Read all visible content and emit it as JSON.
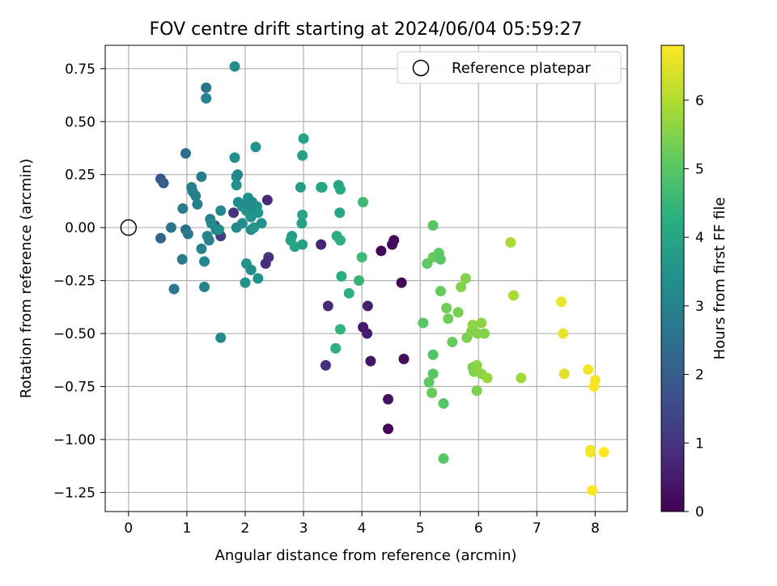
{
  "chart_data": {
    "type": "scatter",
    "title": "FOV centre drift starting at 2024/06/04 05:59:27",
    "xlabel": "Angular distance from reference (arcmin)",
    "ylabel": "Rotation from reference (arcmin)",
    "xlim": [
      -0.4,
      8.55
    ],
    "ylim": [
      -1.34,
      0.86
    ],
    "xticks": [
      0,
      1,
      2,
      3,
      4,
      5,
      6,
      7,
      8
    ],
    "xtick_labels": [
      "0",
      "1",
      "2",
      "3",
      "4",
      "5",
      "6",
      "7",
      "8"
    ],
    "yticks": [
      0.75,
      0.5,
      0.25,
      0.0,
      -0.25,
      -0.5,
      -0.75,
      -1.0,
      -1.25
    ],
    "ytick_labels": [
      "0.75",
      "0.50",
      "0.25",
      "0.00",
      "−0.25",
      "−0.50",
      "−0.75",
      "−1.00",
      "−1.25"
    ],
    "grid": true,
    "legend": {
      "placement": "top-right",
      "entries": [
        "Reference platepar"
      ]
    },
    "colorbar": {
      "label": "Hours from first FF file",
      "range": [
        0,
        6.8
      ],
      "ticks": [
        0,
        1,
        2,
        3,
        4,
        5,
        6
      ],
      "tick_labels": [
        "0",
        "1",
        "2",
        "3",
        "4",
        "5",
        "6"
      ],
      "colormap": "viridis"
    },
    "reference": {
      "x": 0,
      "y": 0,
      "name": "Reference platepar"
    },
    "points": [
      {
        "x": 4.33,
        "y": -0.11,
        "c": 0.1
      },
      {
        "x": 4.55,
        "y": -0.06,
        "c": 0.15
      },
      {
        "x": 4.52,
        "y": -0.08,
        "c": 0.2
      },
      {
        "x": 4.68,
        "y": -0.26,
        "c": 0.1
      },
      {
        "x": 4.72,
        "y": -0.62,
        "c": 0.2
      },
      {
        "x": 4.45,
        "y": -0.81,
        "c": 0.3
      },
      {
        "x": 4.45,
        "y": -0.95,
        "c": 0.1
      },
      {
        "x": 4.15,
        "y": -0.63,
        "c": 0.4
      },
      {
        "x": 4.09,
        "y": -0.5,
        "c": 0.5
      },
      {
        "x": 4.02,
        "y": -0.47,
        "c": 0.45
      },
      {
        "x": 4.1,
        "y": -0.37,
        "c": 0.6
      },
      {
        "x": 3.38,
        "y": -0.65,
        "c": 0.9
      },
      {
        "x": 3.42,
        "y": -0.37,
        "c": 0.8
      },
      {
        "x": 3.3,
        "y": -0.08,
        "c": 0.7
      },
      {
        "x": 2.4,
        "y": -0.14,
        "c": 1.0
      },
      {
        "x": 2.35,
        "y": -0.17,
        "c": 0.9
      },
      {
        "x": 2.38,
        "y": 0.13,
        "c": 0.8
      },
      {
        "x": 1.8,
        "y": 0.07,
        "c": 1.0
      },
      {
        "x": 1.58,
        "y": -0.04,
        "c": 1.2
      },
      {
        "x": 1.48,
        "y": 0.01,
        "c": 1.4
      },
      {
        "x": 0.55,
        "y": 0.23,
        "c": 1.8
      },
      {
        "x": 0.6,
        "y": 0.21,
        "c": 2.0
      },
      {
        "x": 0.55,
        "y": -0.05,
        "c": 2.2
      },
      {
        "x": 0.73,
        "y": 0.0,
        "c": 2.6
      },
      {
        "x": 0.78,
        "y": -0.29,
        "c": 2.7
      },
      {
        "x": 0.93,
        "y": 0.09,
        "c": 2.8
      },
      {
        "x": 0.92,
        "y": -0.15,
        "c": 2.8
      },
      {
        "x": 0.98,
        "y": -0.01,
        "c": 2.5
      },
      {
        "x": 0.98,
        "y": 0.35,
        "c": 2.5
      },
      {
        "x": 1.02,
        "y": -0.03,
        "c": 2.7
      },
      {
        "x": 1.08,
        "y": 0.19,
        "c": 2.9
      },
      {
        "x": 1.1,
        "y": 0.17,
        "c": 3.0
      },
      {
        "x": 1.15,
        "y": 0.15,
        "c": 2.9
      },
      {
        "x": 1.18,
        "y": 0.11,
        "c": 2.9
      },
      {
        "x": 1.25,
        "y": 0.24,
        "c": 2.8
      },
      {
        "x": 1.25,
        "y": -0.1,
        "c": 3.0
      },
      {
        "x": 1.3,
        "y": -0.16,
        "c": 3.1
      },
      {
        "x": 1.3,
        "y": -0.28,
        "c": 3.0
      },
      {
        "x": 1.33,
        "y": 0.66,
        "c": 2.7
      },
      {
        "x": 1.33,
        "y": 0.61,
        "c": 3.0
      },
      {
        "x": 1.35,
        "y": -0.04,
        "c": 3.1
      },
      {
        "x": 1.38,
        "y": -0.06,
        "c": 3.0
      },
      {
        "x": 1.4,
        "y": 0.04,
        "c": 2.9
      },
      {
        "x": 1.42,
        "y": 0.02,
        "c": 3.2
      },
      {
        "x": 1.5,
        "y": -0.01,
        "c": 3.0
      },
      {
        "x": 1.55,
        "y": -0.01,
        "c": 3.3
      },
      {
        "x": 1.58,
        "y": 0.08,
        "c": 3.1
      },
      {
        "x": 1.58,
        "y": -0.52,
        "c": 3.2
      },
      {
        "x": 1.82,
        "y": 0.76,
        "c": 3.3
      },
      {
        "x": 1.82,
        "y": 0.33,
        "c": 3.4
      },
      {
        "x": 1.85,
        "y": 0.24,
        "c": 3.3
      },
      {
        "x": 1.87,
        "y": 0.25,
        "c": 3.1
      },
      {
        "x": 1.85,
        "y": 0.2,
        "c": 3.4
      },
      {
        "x": 1.88,
        "y": 0.12,
        "c": 3.3
      },
      {
        "x": 1.85,
        "y": 0.0,
        "c": 3.2
      },
      {
        "x": 1.95,
        "y": 0.02,
        "c": 3.3
      },
      {
        "x": 1.95,
        "y": 0.1,
        "c": 3.4
      },
      {
        "x": 2.0,
        "y": 0.11,
        "c": 3.3
      },
      {
        "x": 2.02,
        "y": 0.08,
        "c": 3.5
      },
      {
        "x": 2.05,
        "y": 0.14,
        "c": 3.4
      },
      {
        "x": 2.08,
        "y": 0.11,
        "c": 3.3
      },
      {
        "x": 2.1,
        "y": 0.05,
        "c": 3.5
      },
      {
        "x": 2.12,
        "y": 0.12,
        "c": 3.2
      },
      {
        "x": 2.15,
        "y": 0.09,
        "c": 3.3
      },
      {
        "x": 2.18,
        "y": 0.38,
        "c": 3.5
      },
      {
        "x": 2.2,
        "y": 0.1,
        "c": 3.4
      },
      {
        "x": 2.22,
        "y": 0.07,
        "c": 3.5
      },
      {
        "x": 2.1,
        "y": -0.01,
        "c": 3.3
      },
      {
        "x": 2.15,
        "y": 0.0,
        "c": 3.6
      },
      {
        "x": 2.28,
        "y": 0.02,
        "c": 3.4
      },
      {
        "x": 2.02,
        "y": -0.17,
        "c": 3.5
      },
      {
        "x": 2.1,
        "y": -0.2,
        "c": 3.3
      },
      {
        "x": 2.22,
        "y": -0.24,
        "c": 3.4
      },
      {
        "x": 2.0,
        "y": -0.26,
        "c": 3.5
      },
      {
        "x": 2.8,
        "y": -0.04,
        "c": 3.8
      },
      {
        "x": 2.78,
        "y": -0.06,
        "c": 3.9
      },
      {
        "x": 2.85,
        "y": -0.09,
        "c": 4.0
      },
      {
        "x": 2.98,
        "y": -0.08,
        "c": 3.9
      },
      {
        "x": 2.95,
        "y": 0.19,
        "c": 3.8
      },
      {
        "x": 2.98,
        "y": 0.34,
        "c": 3.9
      },
      {
        "x": 3.0,
        "y": 0.42,
        "c": 3.9
      },
      {
        "x": 2.98,
        "y": 0.06,
        "c": 4.0
      },
      {
        "x": 2.97,
        "y": 0.02,
        "c": 3.9
      },
      {
        "x": 3.3,
        "y": 0.19,
        "c": 3.9
      },
      {
        "x": 3.32,
        "y": 0.19,
        "c": 4.0
      },
      {
        "x": 3.6,
        "y": 0.2,
        "c": 4.0
      },
      {
        "x": 3.63,
        "y": 0.18,
        "c": 4.1
      },
      {
        "x": 3.62,
        "y": 0.07,
        "c": 4.0
      },
      {
        "x": 3.57,
        "y": -0.04,
        "c": 4.2
      },
      {
        "x": 3.63,
        "y": -0.06,
        "c": 4.3
      },
      {
        "x": 3.65,
        "y": -0.23,
        "c": 4.2
      },
      {
        "x": 3.78,
        "y": -0.31,
        "c": 4.3
      },
      {
        "x": 3.63,
        "y": -0.48,
        "c": 4.4
      },
      {
        "x": 3.55,
        "y": -0.57,
        "c": 4.3
      },
      {
        "x": 3.95,
        "y": -0.25,
        "c": 4.5
      },
      {
        "x": 4.0,
        "y": -0.14,
        "c": 4.6
      },
      {
        "x": 4.02,
        "y": 0.12,
        "c": 4.6
      },
      {
        "x": 5.05,
        "y": -0.45,
        "c": 5.0
      },
      {
        "x": 5.12,
        "y": -0.17,
        "c": 5.1
      },
      {
        "x": 5.15,
        "y": -0.73,
        "c": 5.1
      },
      {
        "x": 5.2,
        "y": -0.78,
        "c": 5.2
      },
      {
        "x": 5.22,
        "y": -0.69,
        "c": 5.0
      },
      {
        "x": 5.22,
        "y": -0.6,
        "c": 4.9
      },
      {
        "x": 5.22,
        "y": 0.01,
        "c": 5.0
      },
      {
        "x": 5.22,
        "y": -0.14,
        "c": 5.2
      },
      {
        "x": 5.32,
        "y": -0.12,
        "c": 5.1
      },
      {
        "x": 5.35,
        "y": -0.15,
        "c": 5.0
      },
      {
        "x": 5.35,
        "y": -0.3,
        "c": 5.2
      },
      {
        "x": 5.4,
        "y": -0.83,
        "c": 5.0
      },
      {
        "x": 5.4,
        "y": -1.09,
        "c": 5.0
      },
      {
        "x": 5.45,
        "y": -0.38,
        "c": 5.3
      },
      {
        "x": 5.48,
        "y": -0.43,
        "c": 5.3
      },
      {
        "x": 5.55,
        "y": -0.54,
        "c": 5.2
      },
      {
        "x": 5.65,
        "y": -0.4,
        "c": 5.4
      },
      {
        "x": 5.7,
        "y": -0.28,
        "c": 5.5
      },
      {
        "x": 5.78,
        "y": -0.24,
        "c": 5.5
      },
      {
        "x": 5.8,
        "y": -0.52,
        "c": 5.4
      },
      {
        "x": 5.88,
        "y": -0.49,
        "c": 5.5
      },
      {
        "x": 5.9,
        "y": -0.46,
        "c": 5.6
      },
      {
        "x": 5.9,
        "y": -0.66,
        "c": 5.4
      },
      {
        "x": 5.92,
        "y": -0.68,
        "c": 5.5
      },
      {
        "x": 5.97,
        "y": -0.65,
        "c": 5.6
      },
      {
        "x": 5.98,
        "y": -0.5,
        "c": 5.5
      },
      {
        "x": 5.97,
        "y": -0.77,
        "c": 5.4
      },
      {
        "x": 6.05,
        "y": -0.45,
        "c": 5.6
      },
      {
        "x": 6.05,
        "y": -0.69,
        "c": 5.6
      },
      {
        "x": 6.1,
        "y": -0.5,
        "c": 5.5
      },
      {
        "x": 6.15,
        "y": -0.71,
        "c": 5.7
      },
      {
        "x": 6.55,
        "y": -0.07,
        "c": 5.9
      },
      {
        "x": 6.6,
        "y": -0.32,
        "c": 5.9
      },
      {
        "x": 6.73,
        "y": -0.71,
        "c": 5.8
      },
      {
        "x": 7.42,
        "y": -0.35,
        "c": 6.6
      },
      {
        "x": 7.45,
        "y": -0.5,
        "c": 6.6
      },
      {
        "x": 7.47,
        "y": -0.69,
        "c": 6.5
      },
      {
        "x": 7.88,
        "y": -0.67,
        "c": 6.7
      },
      {
        "x": 7.92,
        "y": -1.05,
        "c": 6.7
      },
      {
        "x": 7.92,
        "y": -1.06,
        "c": 6.7
      },
      {
        "x": 7.95,
        "y": -1.24,
        "c": 6.8
      },
      {
        "x": 8.0,
        "y": -0.72,
        "c": 6.7
      },
      {
        "x": 7.98,
        "y": -0.75,
        "c": 6.8
      },
      {
        "x": 8.15,
        "y": -1.06,
        "c": 6.8
      }
    ]
  }
}
